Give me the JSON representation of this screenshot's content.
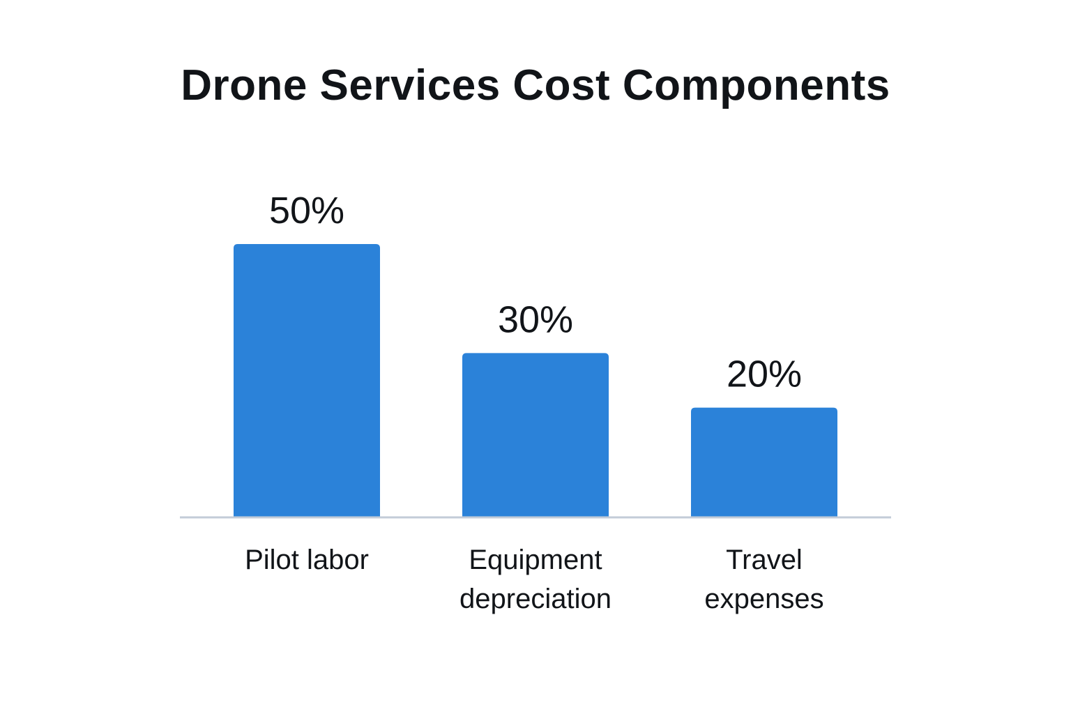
{
  "chart_data": {
    "type": "bar",
    "title": "Drone Services Cost Components",
    "categories": [
      [
        "Pilot labor"
      ],
      [
        "Equipment",
        "depreciation"
      ],
      [
        "Travel",
        "expenses"
      ]
    ],
    "values": [
      50,
      30,
      20
    ],
    "data_labels": [
      "50%",
      "30%",
      "20%"
    ],
    "unit": "%",
    "ylim": [
      0,
      60
    ],
    "grid": false,
    "legend": "none",
    "bar_color": "#2b82d9",
    "axis_color": "#c3ccd8"
  }
}
